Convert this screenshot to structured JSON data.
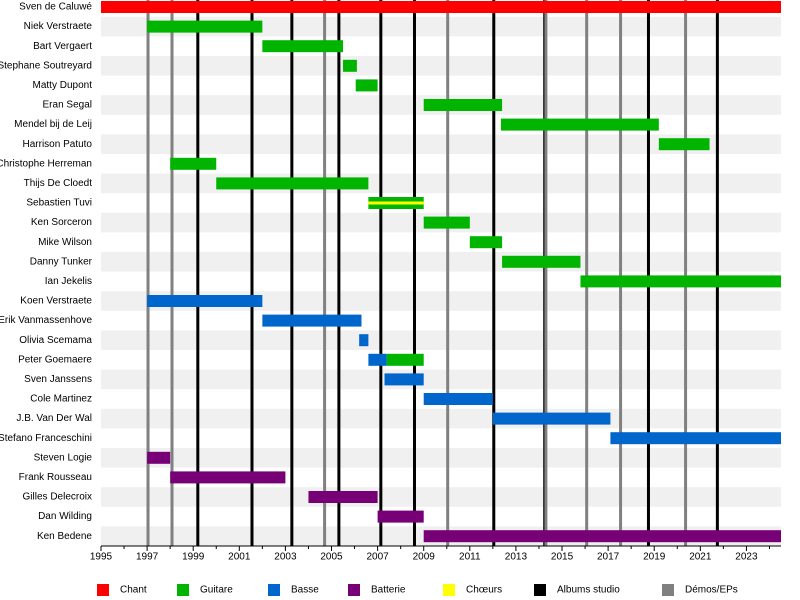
{
  "chart_data": {
    "type": "timeline",
    "xlim": [
      1995,
      2024.5
    ],
    "xticks": [
      1995,
      1997,
      1999,
      2001,
      2003,
      2005,
      2007,
      2009,
      2011,
      2013,
      2015,
      2017,
      2019,
      2021,
      2023
    ],
    "xminor": [
      1996,
      1998,
      2000,
      2002,
      2004,
      2006,
      2008,
      2010,
      2012,
      2014,
      2016,
      2018,
      2020,
      2022,
      2024
    ],
    "series": [
      {
        "name": "Chant",
        "color": "#ff0000"
      },
      {
        "name": "Guitare",
        "color": "#00b400"
      },
      {
        "name": "Basse",
        "color": "#0066cc"
      },
      {
        "name": "Batterie",
        "color": "#770077"
      },
      {
        "name": "Chœurs",
        "color": "#ffff00"
      }
    ],
    "markers": [
      {
        "name": "Albums studio",
        "color": "#000000",
        "x": [
          1999.2,
          2001.55,
          2003.28,
          2005.32,
          2007.14,
          2008.6,
          2012.04,
          2014.25,
          2018.75,
          2021.74
        ]
      },
      {
        "name": "Démos/EPs",
        "color": "#808080",
        "x": [
          1997.04,
          1998.08,
          2004.7,
          2010.04,
          2014.3,
          2016.07,
          2017.54,
          2020.36
        ]
      }
    ],
    "rows": [
      {
        "name": "Sven de Caluwé",
        "bars": [
          {
            "role": "Chant",
            "start": 1995,
            "end": 2024.5
          }
        ]
      },
      {
        "name": "Niek Verstraete",
        "bars": [
          {
            "role": "Guitare",
            "start": 1997,
            "end": 2002
          }
        ]
      },
      {
        "name": "Bart Vergaert",
        "bars": [
          {
            "role": "Guitare",
            "start": 2002,
            "end": 2005.5
          }
        ]
      },
      {
        "name": "Stephane Soutreyard",
        "bars": [
          {
            "role": "Guitare",
            "start": 2005.5,
            "end": 2006.1
          }
        ]
      },
      {
        "name": "Matty Dupont",
        "bars": [
          {
            "role": "Guitare",
            "start": 2006.05,
            "end": 2007
          }
        ]
      },
      {
        "name": "Eran Segal",
        "bars": [
          {
            "role": "Guitare",
            "start": 2009,
            "end": 2012.4
          }
        ]
      },
      {
        "name": "Mendel bij de Leij",
        "bars": [
          {
            "role": "Guitare",
            "start": 2012.35,
            "end": 2019.2
          }
        ]
      },
      {
        "name": "Harrison Patuto",
        "bars": [
          {
            "role": "Guitare",
            "start": 2019.2,
            "end": 2021.4
          }
        ]
      },
      {
        "name": "Christophe Herreman",
        "bars": [
          {
            "role": "Guitare",
            "start": 1998,
            "end": 2000
          }
        ]
      },
      {
        "name": "Thijs De Cloedt",
        "bars": [
          {
            "role": "Guitare",
            "start": 2000,
            "end": 2006.6
          }
        ]
      },
      {
        "name": "Sebastien Tuvi",
        "bars": [
          {
            "role": "Guitare",
            "start": 2006.6,
            "end": 2009
          },
          {
            "role": "Chœurs",
            "start": 2006.6,
            "end": 2009
          }
        ]
      },
      {
        "name": "Ken Sorceron",
        "bars": [
          {
            "role": "Guitare",
            "start": 2009,
            "end": 2011
          }
        ]
      },
      {
        "name": "Mike Wilson",
        "bars": [
          {
            "role": "Guitare",
            "start": 2011,
            "end": 2012.4
          }
        ]
      },
      {
        "name": "Danny Tunker",
        "bars": [
          {
            "role": "Guitare",
            "start": 2012.4,
            "end": 2015.8
          }
        ]
      },
      {
        "name": "Ian Jekelis",
        "bars": [
          {
            "role": "Guitare",
            "start": 2015.8,
            "end": 2024.5
          }
        ]
      },
      {
        "name": "Koen Verstraete",
        "bars": [
          {
            "role": "Basse",
            "start": 1997,
            "end": 2002
          }
        ]
      },
      {
        "name": "Erik Vanmassenhove",
        "bars": [
          {
            "role": "Basse",
            "start": 2002,
            "end": 2006.3
          }
        ]
      },
      {
        "name": "Olivia Scemama",
        "bars": [
          {
            "role": "Basse",
            "start": 2006.2,
            "end": 2006.6
          }
        ]
      },
      {
        "name": "Peter Goemaere",
        "bars": [
          {
            "role": "Basse",
            "start": 2006.6,
            "end": 2007.4
          },
          {
            "role": "Guitare",
            "start": 2007.4,
            "end": 2009
          }
        ]
      },
      {
        "name": "Sven Janssens",
        "bars": [
          {
            "role": "Basse",
            "start": 2007.3,
            "end": 2009
          }
        ]
      },
      {
        "name": "Cole Martinez",
        "bars": [
          {
            "role": "Basse",
            "start": 2009,
            "end": 2012
          }
        ]
      },
      {
        "name": "J.B. Van Der Wal",
        "bars": [
          {
            "role": "Basse",
            "start": 2012,
            "end": 2017.1
          }
        ]
      },
      {
        "name": "Stefano Franceschini",
        "bars": [
          {
            "role": "Basse",
            "start": 2017.1,
            "end": 2024.5
          }
        ]
      },
      {
        "name": "Steven Logie",
        "bars": [
          {
            "role": "Batterie",
            "start": 1997,
            "end": 1998
          }
        ]
      },
      {
        "name": "Frank Rousseau",
        "bars": [
          {
            "role": "Batterie",
            "start": 1998,
            "end": 2003
          }
        ]
      },
      {
        "name": "Gilles Delecroix",
        "bars": [
          {
            "role": "Batterie",
            "start": 2004,
            "end": 2007
          }
        ]
      },
      {
        "name": "Dan Wilding",
        "bars": [
          {
            "role": "Batterie",
            "start": 2007,
            "end": 2009
          }
        ]
      },
      {
        "name": "Ken Bedene",
        "bars": [
          {
            "role": "Batterie",
            "start": 2009,
            "end": 2024.5
          }
        ]
      }
    ]
  }
}
